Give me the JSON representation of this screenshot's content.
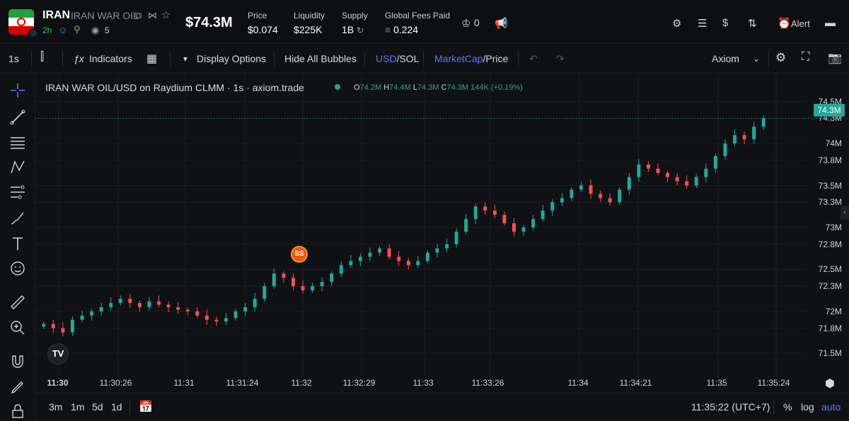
{
  "token": {
    "ticker": "IRAN",
    "name": "IRAN WAR OIL",
    "age": "2h",
    "views": "5",
    "market_cap": "$74.3M"
  },
  "stats": [
    {
      "label": "Price",
      "value": "$0.074"
    },
    {
      "label": "Liquidity",
      "value": "$225K"
    },
    {
      "label": "Supply",
      "value": "1B"
    },
    {
      "label": "Global Fees Paid",
      "value": "0.224"
    }
  ],
  "watch_count": "0",
  "alert_label": "Alert",
  "toolbar": {
    "interval": "1s",
    "indicators": "Indicators",
    "display_options": "Display Options",
    "hide_bubbles": "Hide All Bubbles",
    "currency_usd": "USD",
    "currency_sol": "SOL",
    "marketcap": "MarketCap",
    "price": "Price",
    "source": "Axiom",
    "separator": "/"
  },
  "chart_header": {
    "title": "IRAN WAR OIL/USD on Raydium CLMM · 1s · axiom.trade",
    "open_label": "O",
    "open": "74.2M",
    "high_label": "H",
    "high": "74.4M",
    "low_label": "L",
    "low": "74.3M",
    "close_label": "C",
    "close": "74.3M",
    "change": "144K (+0.19%)"
  },
  "bubble_label": "SS",
  "current_price_tag": "74.3M",
  "bottom": {
    "ranges": [
      "3m",
      "1m",
      "5d",
      "1d"
    ],
    "clock": "11:35:22 (UTC+7)",
    "percent": "%",
    "log": "log",
    "auto": "auto"
  },
  "colors": {
    "up": "#26a69a",
    "down": "#ef5350",
    "accent": "#4c7dff"
  },
  "chart_data": {
    "type": "candlestick",
    "y_ticks": [
      "74.5M",
      "74.3M",
      "74M",
      "73.8M",
      "73.5M",
      "73.3M",
      "73M",
      "72.8M",
      "72.5M",
      "72.3M",
      "72M",
      "71.8M",
      "71.5M"
    ],
    "x_ticks": [
      "11:30",
      "11:30:26",
      "11:31",
      "11:31:24",
      "11:32",
      "11:32:29",
      "11:33",
      "11:33:26",
      "11:34",
      "11:34:21",
      "11:35",
      "11:35:24"
    ],
    "ylim": [
      71.3,
      74.75
    ],
    "close_series": [
      71.85,
      71.8,
      71.75,
      71.9,
      71.95,
      72.0,
      72.05,
      72.1,
      72.15,
      72.1,
      72.05,
      72.12,
      72.08,
      72.05,
      72.02,
      72.0,
      71.95,
      71.9,
      71.88,
      71.92,
      72.0,
      72.05,
      72.15,
      72.3,
      72.45,
      72.4,
      72.3,
      72.25,
      72.3,
      72.35,
      72.45,
      72.55,
      72.6,
      72.65,
      72.7,
      72.75,
      72.65,
      72.6,
      72.55,
      72.6,
      72.7,
      72.75,
      72.8,
      72.95,
      73.1,
      73.25,
      73.2,
      73.15,
      73.05,
      72.95,
      73.0,
      73.1,
      73.2,
      73.3,
      73.35,
      73.45,
      73.5,
      73.4,
      73.35,
      73.3,
      73.45,
      73.6,
      73.75,
      73.7,
      73.65,
      73.6,
      73.55,
      73.5,
      73.6,
      73.7,
      73.85,
      74.0,
      74.1,
      74.05,
      74.2,
      74.3
    ]
  }
}
